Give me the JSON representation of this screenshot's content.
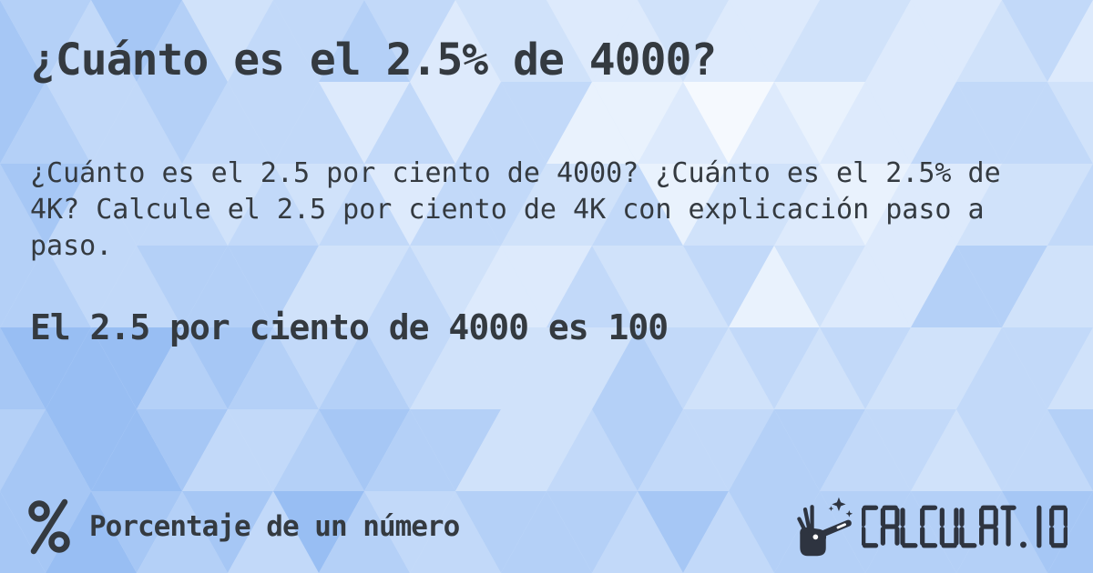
{
  "card": {
    "title": "¿Cuánto es el 2.5% de 4000?",
    "description": "¿Cuánto es el 2.5 por ciento de 4000? ¿Cuánto es el 2.5% de 4K? Calcule el 2.5 por ciento de 4K con explicación paso a paso.",
    "result": "El 2.5 por ciento de 4000 es 100"
  },
  "footer": {
    "category_label": "Porcentaje de un número",
    "category_icon": "percent-icon",
    "logo_text": "CALCULAT.IO",
    "logo_icon": "magic-wand-hand-icon"
  },
  "colors": {
    "text": "#343a40",
    "logo": "#2e3440",
    "background_base": "#d7e7fc"
  },
  "background": {
    "pattern": "triangle-mosaic",
    "palette": [
      "#ffffff",
      "#f5f9fe",
      "#e9f2fd",
      "#ddeafc",
      "#d0e2fa",
      "#c2d9f9",
      "#b4d0f7",
      "#a6c7f5",
      "#98bef3"
    ]
  }
}
